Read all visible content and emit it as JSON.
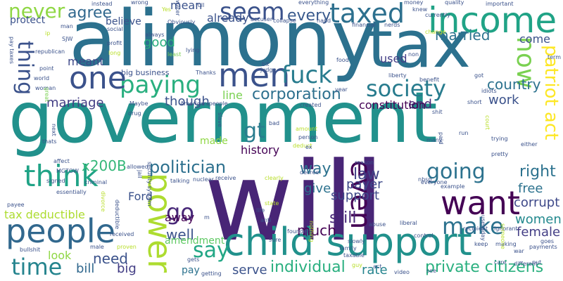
{
  "words": [
    {
      "text": "government",
      "color": "#21918c"
    },
    {
      "text": "will",
      "color": "#482576"
    },
    {
      "text": "alimony",
      "color": "#2c718e"
    },
    {
      "text": "tax",
      "color": "#2c718e"
    },
    {
      "text": "child support",
      "color": "#21918c"
    },
    {
      "text": "income",
      "color": "#20a386"
    },
    {
      "text": "people",
      "color": "#31688e"
    },
    {
      "text": "men",
      "color": "#3b528b"
    },
    {
      "text": "power",
      "color": "#addc30"
    },
    {
      "text": "want",
      "color": "#440154"
    },
    {
      "text": "paying",
      "color": "#29af7f"
    },
    {
      "text": "think",
      "color": "#20a386"
    },
    {
      "text": "one",
      "color": "#3b528b"
    },
    {
      "text": "taxed",
      "color": "#2d708e"
    },
    {
      "text": "seem",
      "color": "#3b528b"
    },
    {
      "text": "fuck",
      "color": "#287c8e"
    },
    {
      "text": "society",
      "color": "#287c8e"
    },
    {
      "text": "even",
      "color": "#440154"
    },
    {
      "text": "going",
      "color": "#2c728e"
    },
    {
      "text": "now",
      "color": "#7ad151"
    },
    {
      "text": "make",
      "color": "#2c728e"
    },
    {
      "text": "say",
      "color": "#22a785"
    },
    {
      "text": "time",
      "color": "#25848e"
    },
    {
      "text": "go",
      "color": "#482878"
    },
    {
      "text": "thing",
      "color": "#3b528b"
    },
    {
      "text": "never",
      "color": "#8fd744"
    },
    {
      "text": "gt",
      "color": "#287c8e"
    },
    {
      "text": "politician",
      "color": "#2d708e"
    },
    {
      "text": "corporation",
      "color": "#2d708e"
    },
    {
      "text": "patriot act",
      "color": "#fde725"
    },
    {
      "text": "individual",
      "color": "#29af7f"
    },
    {
      "text": "private citizens",
      "color": "#2ab07f"
    },
    {
      "text": "agree",
      "color": "#31688e"
    },
    {
      "text": "every",
      "color": "#38598c"
    },
    {
      "text": "married",
      "color": "#2c728e"
    },
    {
      "text": "right",
      "color": "#2c728e"
    },
    {
      "text": "still",
      "color": "#482878"
    },
    {
      "text": "support",
      "color": "#3e4989"
    },
    {
      "text": "law",
      "color": "#414487"
    },
    {
      "text": "payer",
      "color": "#3e4989"
    },
    {
      "text": "way",
      "color": "#2c728e"
    },
    {
      "text": "women",
      "color": "#23898e"
    },
    {
      "text": "country",
      "color": "#2c728e"
    },
    {
      "text": "work",
      "color": "#3b528b"
    },
    {
      "text": "end",
      "color": "#482878"
    },
    {
      "text": "constitution",
      "color": "#440154"
    },
    {
      "text": "x200B",
      "color": "#35b779"
    },
    {
      "text": "well",
      "color": "#3b528b"
    },
    {
      "text": "need",
      "color": "#3b528b"
    },
    {
      "text": "much",
      "color": "#440154"
    },
    {
      "text": "give",
      "color": "#2c728e"
    },
    {
      "text": "free",
      "color": "#2c728e"
    },
    {
      "text": "corrupt",
      "color": "#3e4989"
    },
    {
      "text": "female",
      "color": "#433e85"
    },
    {
      "text": "serve",
      "color": "#3b528b"
    },
    {
      "text": "rate",
      "color": "#25848e"
    },
    {
      "text": "bill",
      "color": "#31688e"
    },
    {
      "text": "big",
      "color": "#433e85"
    },
    {
      "text": "tax deductible",
      "color": "#addc30"
    },
    {
      "text": "history",
      "color": "#440154"
    },
    {
      "text": "amendment",
      "color": "#5ec962"
    },
    {
      "text": "meant",
      "color": "#3e4989"
    },
    {
      "text": "good",
      "color": "#29af7f"
    },
    {
      "text": "marriage",
      "color": "#433e85"
    },
    {
      "text": "though",
      "color": "#3b528b"
    },
    {
      "text": "already",
      "color": "#3b528b"
    },
    {
      "text": "believe",
      "color": "#3b528b"
    },
    {
      "text": "protect",
      "color": "#3b528b"
    },
    {
      "text": "mean",
      "color": "#3b528b"
    },
    {
      "text": "used",
      "color": "#433e85"
    },
    {
      "text": "come",
      "color": "#3b528b"
    },
    {
      "text": "made",
      "color": "#8fd744"
    },
    {
      "text": "look",
      "color": "#8fd744"
    },
    {
      "text": "pay",
      "color": "#2c728e"
    },
    {
      "text": "line",
      "color": "#7ad151"
    },
    {
      "text": "away",
      "color": "#440154"
    },
    {
      "text": "Ford",
      "color": "#3b528b"
    },
    {
      "text": "big business",
      "color": "#3b528b"
    },
    {
      "text": "Thanks",
      "color": "#3b528b"
    },
    {
      "text": "American people",
      "color": "#3b528b"
    },
    {
      "text": "Obviously",
      "color": "#3b528b"
    },
    {
      "text": "lying",
      "color": "#3b528b"
    },
    {
      "text": "profit",
      "color": "#3b528b"
    },
    {
      "text": "social",
      "color": "#3b528b"
    },
    {
      "text": "least",
      "color": "#7ad151"
    },
    {
      "text": "long",
      "color": "#b8de29"
    },
    {
      "text": "republican",
      "color": "#3b528b"
    },
    {
      "text": "point",
      "color": "#3b528b"
    },
    {
      "text": "world",
      "color": "#3b528b"
    },
    {
      "text": "woman",
      "color": "#3b528b"
    },
    {
      "text": "man",
      "color": "#3b528b"
    },
    {
      "text": "SJW",
      "color": "#3b528b"
    },
    {
      "text": "instead",
      "color": "#3b528b"
    },
    {
      "text": "wrong",
      "color": "#3b528b"
    },
    {
      "text": "Yes",
      "color": "#b8de29"
    },
    {
      "text": "always",
      "color": "#3b528b"
    },
    {
      "text": "full",
      "color": "#3b528b"
    },
    {
      "text": "everything",
      "color": "#3b528b"
    },
    {
      "text": "accuser",
      "color": "#3b528b"
    },
    {
      "text": "collapse",
      "color": "#3b528b"
    },
    {
      "text": "hand",
      "color": "#3b528b"
    },
    {
      "text": "financial",
      "color": "#3b528b"
    },
    {
      "text": "nerds",
      "color": "#3b528b"
    },
    {
      "text": "money",
      "color": "#3b528b"
    },
    {
      "text": "quality",
      "color": "#3b528b"
    },
    {
      "text": "knew",
      "color": "#3b528b"
    },
    {
      "text": "important",
      "color": "#3b528b"
    },
    {
      "text": "currently",
      "color": "#3b528b"
    },
    {
      "text": "change",
      "color": "#b8de29"
    },
    {
      "text": "non",
      "color": "#3b528b"
    },
    {
      "text": "judge",
      "color": "#3b528b"
    },
    {
      "text": "food",
      "color": "#3b528b"
    },
    {
      "text": "liberty",
      "color": "#3b528b"
    },
    {
      "text": "benefit",
      "color": "#3b528b"
    },
    {
      "text": "got",
      "color": "#3b528b"
    },
    {
      "text": "term",
      "color": "#3b528b"
    },
    {
      "text": "year",
      "color": "#3b528b"
    },
    {
      "text": "short",
      "color": "#3b528b"
    },
    {
      "text": "idiots",
      "color": "#3b528b"
    },
    {
      "text": "shit",
      "color": "#3b528b"
    },
    {
      "text": "created",
      "color": "#3b528b"
    },
    {
      "text": "Maybe",
      "color": "#3b528b"
    },
    {
      "text": "drug",
      "color": "#3b528b"
    },
    {
      "text": "pay taxes",
      "color": "#3b528b"
    },
    {
      "text": "security system",
      "color": "#3b528b"
    },
    {
      "text": "allowed",
      "color": "#3b528b"
    },
    {
      "text": "jail",
      "color": "#3b528b"
    },
    {
      "text": "affect",
      "color": "#3b528b"
    },
    {
      "text": "MGTOW",
      "color": "#3b528b"
    },
    {
      "text": "thats",
      "color": "#3b528b"
    },
    {
      "text": "next",
      "color": "#3b528b"
    },
    {
      "text": "signed",
      "color": "#3b528b"
    },
    {
      "text": "criminal",
      "color": "#3b528b"
    },
    {
      "text": "essentially",
      "color": "#3b528b"
    },
    {
      "text": "payee",
      "color": "#3b528b"
    },
    {
      "text": "bullshit",
      "color": "#3b528b"
    },
    {
      "text": "received",
      "color": "#3b528b"
    },
    {
      "text": "proven",
      "color": "#b8de29"
    },
    {
      "text": "male",
      "color": "#3b528b"
    },
    {
      "text": "talking",
      "color": "#3b528b"
    },
    {
      "text": "nuclear",
      "color": "#3b528b"
    },
    {
      "text": "receive",
      "color": "#3b528b"
    },
    {
      "text": "clearly",
      "color": "#b8de29"
    },
    {
      "text": "state",
      "color": "#b8de29"
    },
    {
      "text": "life",
      "color": "#3b528b"
    },
    {
      "text": "anti",
      "color": "#3b528b"
    },
    {
      "text": "founders",
      "color": "#3b528b"
    },
    {
      "text": "decree",
      "color": "#3b528b"
    },
    {
      "text": "reason",
      "color": "#3b528b"
    },
    {
      "text": "gets",
      "color": "#3b528b"
    },
    {
      "text": "getting",
      "color": "#3b528b"
    },
    {
      "text": "nbsp",
      "color": "#3b528b"
    },
    {
      "text": "everyone",
      "color": "#3b528b"
    },
    {
      "text": "example",
      "color": "#3b528b"
    },
    {
      "text": "liberal",
      "color": "#3b528b"
    },
    {
      "text": "control",
      "color": "#3b528b"
    },
    {
      "text": "abuse",
      "color": "#3b528b"
    },
    {
      "text": "family",
      "color": "#3b528b"
    },
    {
      "text": "taxable",
      "color": "#3b528b"
    },
    {
      "text": "slowly",
      "color": "#3b528b"
    },
    {
      "text": "guy",
      "color": "#b8de29"
    },
    {
      "text": "act",
      "color": "#3b528b"
    },
    {
      "text": "see",
      "color": "#3b528b"
    },
    {
      "text": "war",
      "color": "#3b528b"
    },
    {
      "text": "goes",
      "color": "#3b528b"
    },
    {
      "text": "payments",
      "color": "#3b528b"
    },
    {
      "text": "put",
      "color": "#3b528b"
    },
    {
      "text": "ignorant",
      "color": "#3b528b"
    },
    {
      "text": "making",
      "color": "#3b528b"
    },
    {
      "text": "recipient",
      "color": "#3b528b"
    },
    {
      "text": "pretty",
      "color": "#3b528b"
    },
    {
      "text": "either",
      "color": "#3b528b"
    },
    {
      "text": "trying",
      "color": "#3b528b"
    },
    {
      "text": "run",
      "color": "#3b528b"
    },
    {
      "text": "many",
      "color": "#3b528b"
    },
    {
      "text": "bad",
      "color": "#3b528b"
    },
    {
      "text": "person",
      "color": "#3b528b"
    },
    {
      "text": "amount",
      "color": "#b8de29"
    },
    {
      "text": "deduct",
      "color": "#b8de29"
    },
    {
      "text": "ex",
      "color": "#3b528b"
    },
    {
      "text": "video",
      "color": "#3b528b"
    },
    {
      "text": "care",
      "color": "#3b528b"
    },
    {
      "text": "keep",
      "color": "#3b528b"
    },
    {
      "text": "slave",
      "color": "#3b528b"
    },
    {
      "text": "sure",
      "color": "#3b528b"
    },
    {
      "text": "great",
      "color": "#7ad151"
    },
    {
      "text": "water",
      "color": "#3b528b"
    },
    {
      "text": "someone",
      "color": "#b8de29"
    },
    {
      "text": "different",
      "color": "#3b528b"
    },
    {
      "text": "bit",
      "color": "#3b528b"
    },
    {
      "text": "divorce",
      "color": "#b8de29"
    },
    {
      "text": "deductible",
      "color": "#3b528b"
    },
    {
      "text": "ip",
      "color": "#b8de29"
    },
    {
      "text": "court",
      "color": "#b8de29"
    },
    {
      "text": "paid",
      "color": "#3b528b"
    },
    {
      "text": "nothing",
      "color": "#b8de29"
    },
    {
      "text": "m",
      "color": "#3b528b"
    },
    {
      "text": "usetoday",
      "color": "#3b528b"
    }
  ]
}
